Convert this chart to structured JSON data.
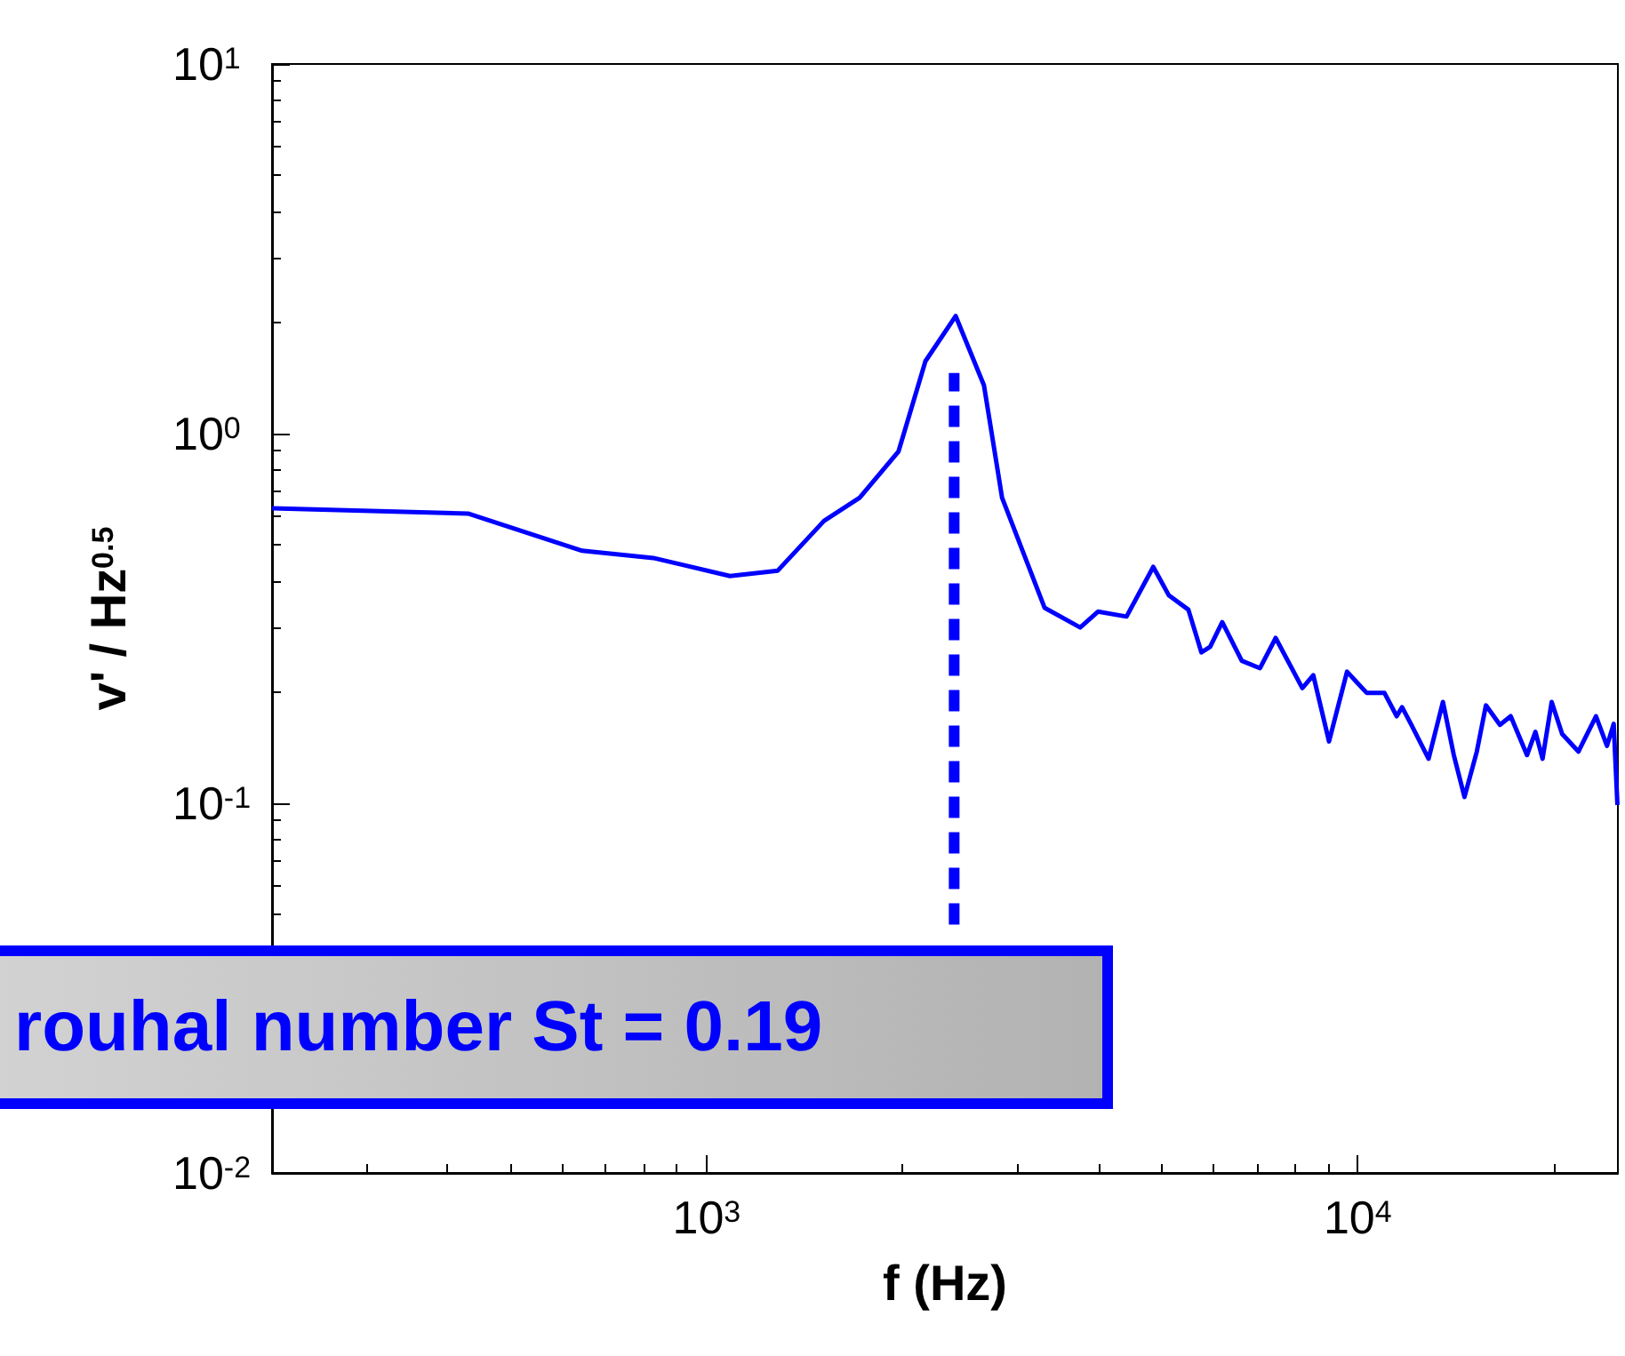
{
  "chart_data": {
    "type": "line",
    "xlabel": "f (Hz)",
    "ylabel": "v' / Hz$^{0.5}$",
    "log": "xy",
    "grid": false,
    "marker": "none",
    "xlim": [
      215,
      25100
    ],
    "ylim": [
      0.01,
      10
    ],
    "xticks": [
      {
        "value": 1000,
        "label": "10$^{3}$"
      },
      {
        "value": 10000,
        "label": "10$^{4}$"
      }
    ],
    "yticks": [
      {
        "value": 0.01,
        "label": "10$^{-2}$"
      },
      {
        "value": 0.1,
        "label": "10$^{-1}$"
      },
      {
        "value": 1,
        "label": "10$^{0}$"
      },
      {
        "value": 10,
        "label": "10$^{1}$"
      }
    ],
    "annotations": [
      "rouhal number St = 0.19"
    ],
    "series": [
      {
        "color": "#0000ff",
        "line_style": "solid",
        "x": [
          215,
          430,
          644,
          828,
          1086,
          1286,
          1515,
          1718,
          1971,
          2168,
          2413,
          2667,
          2843,
          3304,
          3748,
          3991,
          4415,
          4853,
          5129,
          5495,
          5754,
          5935,
          6194,
          6637,
          7079,
          7482,
          8222,
          8547,
          9036,
          9631,
          10320,
          10990,
          11480,
          11700,
          12070,
          12850,
          13520,
          14050,
          14590,
          15240,
          15740,
          16540,
          17180,
          18200,
          18750,
          19230,
          19860,
          20610,
          21830,
          23230,
          24150,
          24730,
          25060
        ],
        "values": [
          0.628,
          0.608,
          0.482,
          0.461,
          0.412,
          0.426,
          0.581,
          0.671,
          0.895,
          1.57,
          2.08,
          1.35,
          0.671,
          0.338,
          0.299,
          0.33,
          0.32,
          0.436,
          0.365,
          0.334,
          0.256,
          0.265,
          0.309,
          0.243,
          0.232,
          0.28,
          0.205,
          0.222,
          0.147,
          0.227,
          0.199,
          0.199,
          0.172,
          0.182,
          0.164,
          0.132,
          0.188,
          0.135,
          0.104,
          0.138,
          0.184,
          0.163,
          0.172,
          0.135,
          0.156,
          0.132,
          0.188,
          0.154,
          0.138,
          0.172,
          0.143,
          0.164,
          0.099
        ]
      },
      {
        "color": "#0000ff",
        "line_style": "dashed",
        "x": [
          2400,
          2400
        ],
        "values": [
          0.047,
          1.46
        ]
      }
    ]
  }
}
